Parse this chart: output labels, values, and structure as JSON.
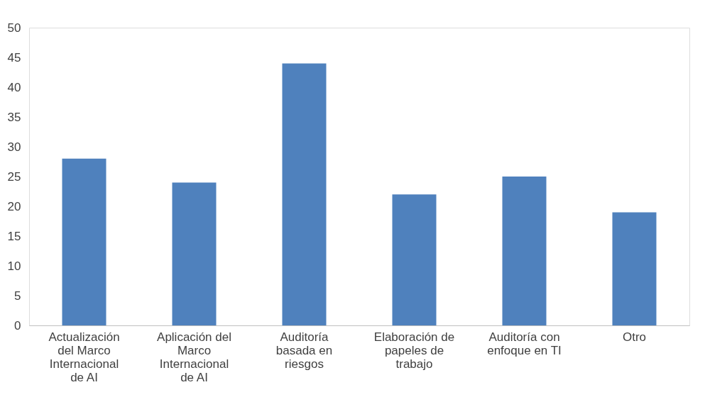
{
  "chart_data": {
    "type": "bar",
    "categories": [
      "Actualización del Marco Internacional de AI",
      "Aplicación del Marco Internacional de AI",
      "Auditoría basada en riesgos",
      "Elaboración de papeles de trabajo",
      "Auditoría con enfoque en TI",
      "Otro"
    ],
    "values": [
      28,
      24,
      44,
      22,
      25,
      19
    ],
    "color": "#4f81bd",
    "ylim": [
      0,
      50
    ],
    "yticks": [
      0,
      5,
      10,
      15,
      20,
      25,
      30,
      35,
      40,
      45,
      50
    ],
    "grid": false
  }
}
